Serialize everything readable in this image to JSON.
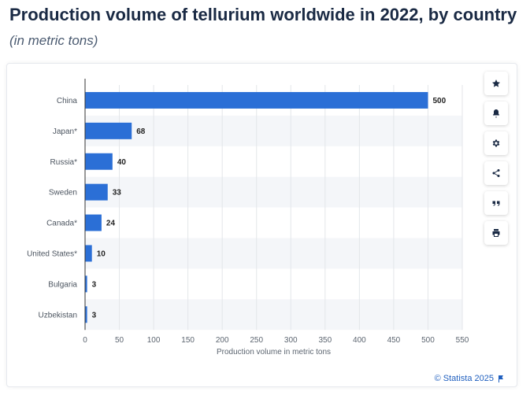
{
  "title": "Production volume of tellurium worldwide in 2022, by country",
  "subtitle": "(in metric tons)",
  "credit": "© Statista 2025",
  "colors": {
    "bar": "#2b6fd6",
    "band": "#f4f6f9",
    "grid": "#e3e6ea"
  },
  "sidebar": {
    "buttons": [
      {
        "name": "favorite-button",
        "icon": "star-icon"
      },
      {
        "name": "notification-button",
        "icon": "bell-icon"
      },
      {
        "name": "settings-button",
        "icon": "gear-icon"
      },
      {
        "name": "share-button",
        "icon": "share-icon"
      },
      {
        "name": "cite-button",
        "icon": "quote-icon"
      },
      {
        "name": "print-button",
        "icon": "print-icon"
      }
    ]
  },
  "chart_data": {
    "type": "bar",
    "orientation": "horizontal",
    "categories": [
      "China",
      "Japan*",
      "Russia*",
      "Sweden",
      "Canada*",
      "United States*",
      "Bulgaria",
      "Uzbekistan"
    ],
    "values": [
      500,
      68,
      40,
      33,
      24,
      10,
      3,
      3
    ],
    "xlabel": "Production volume in metric tons",
    "ylabel": "",
    "xlim": [
      0,
      550
    ],
    "xticks": [
      0,
      50,
      100,
      150,
      200,
      250,
      300,
      350,
      400,
      450,
      500,
      550
    ],
    "grid": true,
    "data_labels": true
  }
}
